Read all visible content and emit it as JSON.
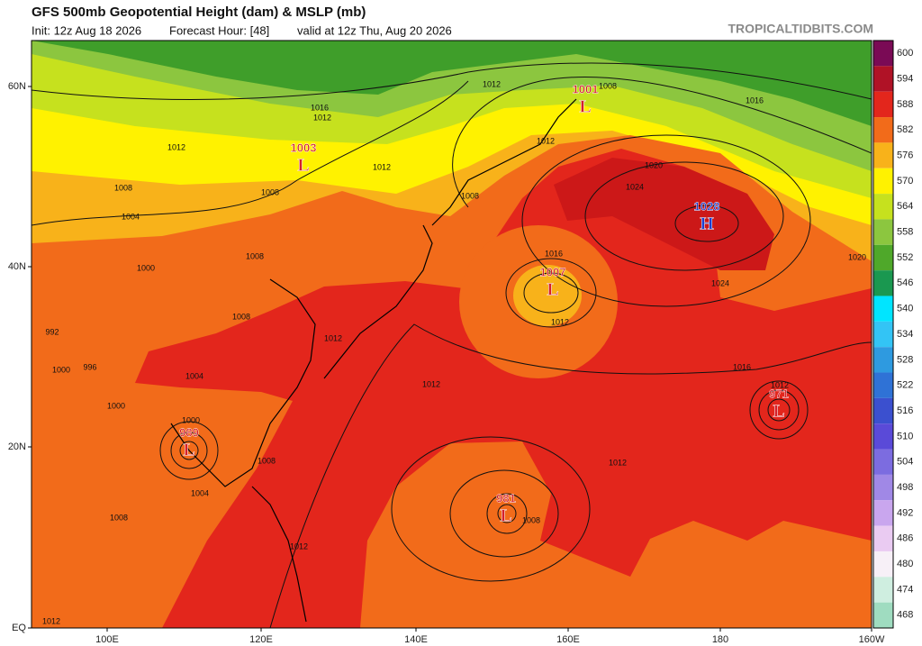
{
  "header": {
    "title": "GFS 500mb Geopotential Height (dam) & MSLP (mb)",
    "init": "Init: 12z Aug 18 2026",
    "forecast": "Forecast Hour: [48]",
    "valid": "valid at 12z Thu, Aug 20 2026",
    "site": "TROPICALTIDBITS.COM"
  },
  "colorbar": {
    "labels": [
      "600",
      "594",
      "588",
      "582",
      "576",
      "570",
      "564",
      "558",
      "552",
      "546",
      "540",
      "534",
      "528",
      "522",
      "516",
      "510",
      "504",
      "498",
      "492",
      "486",
      "480",
      "474",
      "468"
    ],
    "colors": [
      "#7a0a55",
      "#b01226",
      "#e3261c",
      "#f26b1a",
      "#f8b21a",
      "#fff200",
      "#c6e11e",
      "#8cc63f",
      "#4fa82a",
      "#1a9850",
      "#00e5ff",
      "#33c4f5",
      "#2e9ae0",
      "#2f72d6",
      "#3b50cf",
      "#5a4ad8",
      "#7c6ce0",
      "#a088e6",
      "#c9a6ee",
      "#eacbf2",
      "#f7f0f7",
      "#cfeee0",
      "#9fdcc0"
    ]
  },
  "map": {
    "lat_labels": [
      "60N",
      "40N",
      "20N",
      "EQ"
    ],
    "lon_labels": [
      "100E",
      "120E",
      "140E",
      "160E",
      "180",
      "160W"
    ],
    "centers": [
      {
        "letter": "L",
        "pressure": "1003"
      },
      {
        "letter": "L",
        "pressure": "1001"
      },
      {
        "letter": "H",
        "pressure": "1028"
      },
      {
        "letter": "L",
        "pressure": "1007"
      },
      {
        "letter": "L",
        "pressure": "971"
      },
      {
        "letter": "L",
        "pressure": "989"
      },
      {
        "letter": "L",
        "pressure": "981"
      }
    ],
    "low_color": "#d4202a",
    "high_color": "#1a3fd0",
    "isobar_labels": [
      "1012",
      "1016",
      "1012",
      "1012",
      "1012",
      "1008",
      "1008",
      "1004",
      "1008",
      "1012",
      "1008",
      "1016",
      "1020",
      "1024",
      "1016",
      "1012",
      "1024",
      "1020",
      "1008",
      "1000",
      "1008",
      "992",
      "1000",
      "996",
      "1004",
      "1012",
      "1016",
      "1012",
      "1012",
      "1000",
      "1000",
      "1008",
      "1004",
      "1008",
      "1008",
      "1012",
      "1012",
      "1012"
    ]
  }
}
